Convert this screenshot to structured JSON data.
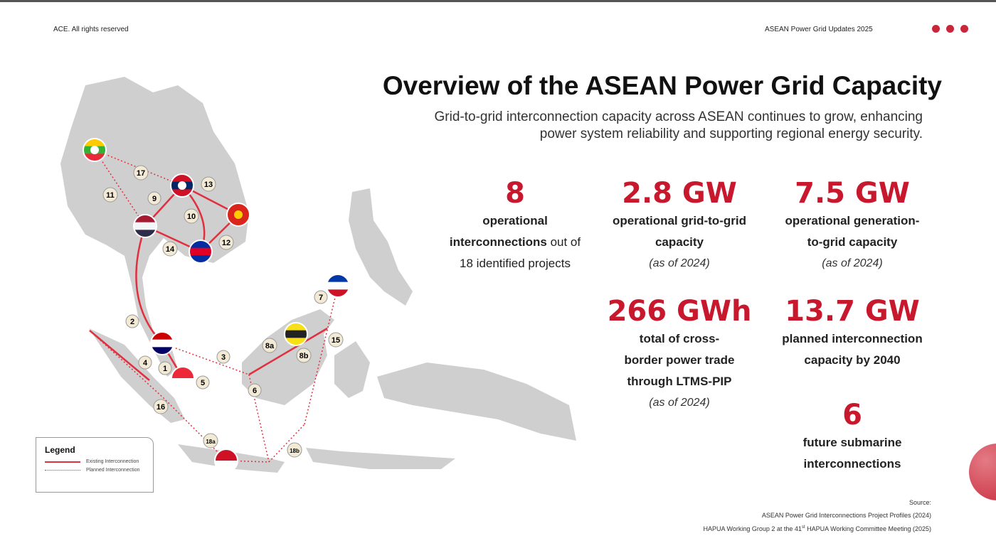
{
  "header": {
    "left": "ACE. All rights reserved",
    "right": "ASEAN Power Grid Updates 2025"
  },
  "title": "Overview of the ASEAN Power Grid Capacity",
  "subtitle_line1": "Grid-to-grid interconnection capacity across ASEAN continues to grow, enhancing",
  "subtitle_line2": "power system reliability and supporting regional energy security.",
  "colors": {
    "accent": "#c8182e",
    "map": "#cfcfcf"
  },
  "stats": [
    {
      "value": "8",
      "l1": "operational",
      "l2": "interconnections",
      "l2b": " out of",
      "l3": "18 identified projects"
    },
    {
      "value": "2.8 GW",
      "l1": "operational grid-to-grid",
      "l2": "capacity",
      "note": "(as of 2024)"
    },
    {
      "value": "7.5 GW",
      "l1": "operational generation-",
      "l2": "to-grid capacity",
      "note": "(as of 2024)"
    },
    {
      "value": "266 GWh",
      "l1": "total of cross-",
      "l2": "border power trade",
      "l3": "through LTMS-PIP",
      "note": "(as of 2024)"
    },
    {
      "value": "13.7 GW",
      "l1": "planned interconnection",
      "l2": "capacity by 2040"
    },
    {
      "value": "6",
      "l1": "future submarine",
      "l2": "interconnections"
    }
  ],
  "legend": {
    "title": "Legend",
    "existing": "Existing Interconnection",
    "planned": "Planned Interconnection"
  },
  "map_labels": [
    "17",
    "9",
    "11",
    "13",
    "10",
    "12",
    "14",
    "2",
    "3",
    "4",
    "1",
    "5",
    "16",
    "6",
    "8a",
    "8b",
    "7",
    "15",
    "18a",
    "18b"
  ],
  "flags": [
    "myanmar",
    "laos",
    "vietnam",
    "thailand",
    "cambodia",
    "malaysia",
    "singapore",
    "brunei",
    "philippines",
    "indonesia"
  ],
  "source": {
    "label": "Source:",
    "s1": "ASEAN Power Grid Interconnections Project Profiles (2024)",
    "s2a": "HAPUA Working Group 2 at the 41",
    "s2sup": "st",
    "s2b": " HAPUA Working Committee Meeting (2025)"
  }
}
